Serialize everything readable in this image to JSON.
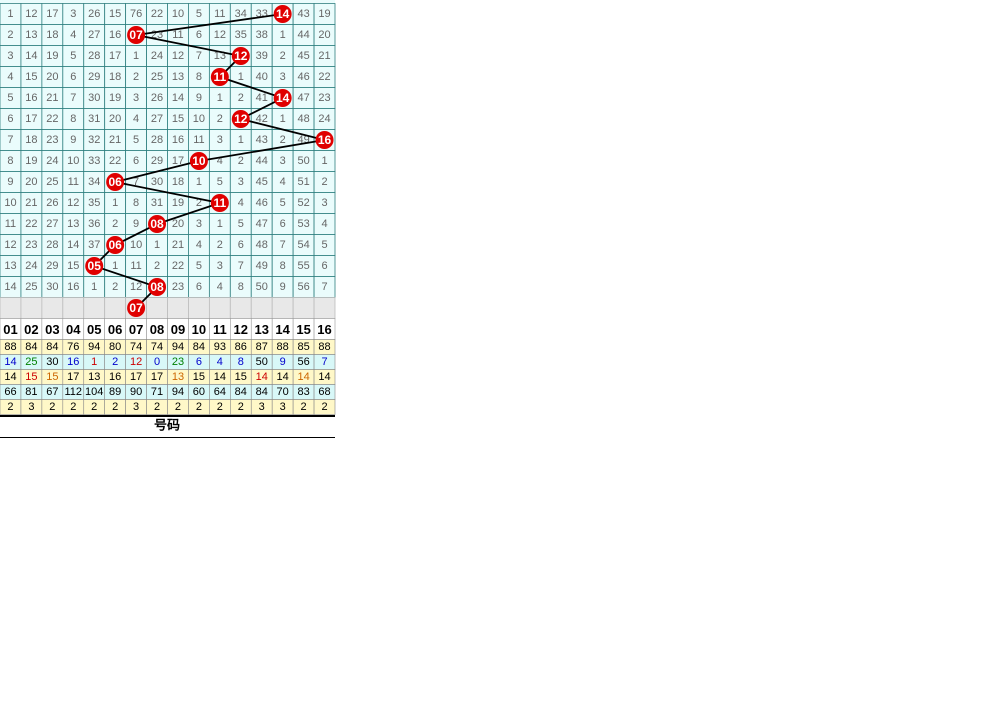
{
  "grid": {
    "rows": [
      {
        "cells": [
          "1",
          "12",
          "17",
          "3",
          "26",
          "15",
          "76",
          "22",
          "10",
          "5",
          "11",
          "34",
          "33",
          "14",
          "43",
          "19"
        ],
        "ball": 13
      },
      {
        "cells": [
          "2",
          "13",
          "18",
          "4",
          "27",
          "16",
          "07",
          "23",
          "11",
          "6",
          "12",
          "35",
          "38",
          "1",
          "44",
          "20"
        ],
        "ball": 6
      },
      {
        "cells": [
          "3",
          "14",
          "19",
          "5",
          "28",
          "17",
          "1",
          "24",
          "12",
          "7",
          "13",
          "12",
          "39",
          "2",
          "45",
          "21"
        ],
        "ball": 11
      },
      {
        "cells": [
          "4",
          "15",
          "20",
          "6",
          "29",
          "18",
          "2",
          "25",
          "13",
          "8",
          "11",
          "1",
          "40",
          "3",
          "46",
          "22"
        ],
        "ball": 10
      },
      {
        "cells": [
          "5",
          "16",
          "21",
          "7",
          "30",
          "19",
          "3",
          "26",
          "14",
          "9",
          "1",
          "2",
          "41",
          "14",
          "47",
          "23"
        ],
        "ball": 13
      },
      {
        "cells": [
          "6",
          "17",
          "22",
          "8",
          "31",
          "20",
          "4",
          "27",
          "15",
          "10",
          "2",
          "12",
          "42",
          "1",
          "48",
          "24"
        ],
        "ball": 11
      },
      {
        "cells": [
          "7",
          "18",
          "23",
          "9",
          "32",
          "21",
          "5",
          "28",
          "16",
          "11",
          "3",
          "1",
          "43",
          "2",
          "49",
          "16"
        ],
        "ball": 15
      },
      {
        "cells": [
          "8",
          "19",
          "24",
          "10",
          "33",
          "22",
          "6",
          "29",
          "17",
          "10",
          "4",
          "2",
          "44",
          "3",
          "50",
          "1"
        ],
        "ball": 9
      },
      {
        "cells": [
          "9",
          "20",
          "25",
          "11",
          "34",
          "06",
          "7",
          "30",
          "18",
          "1",
          "5",
          "3",
          "45",
          "4",
          "51",
          "2"
        ],
        "ball": 5
      },
      {
        "cells": [
          "10",
          "21",
          "26",
          "12",
          "35",
          "1",
          "8",
          "31",
          "19",
          "2",
          "11",
          "4",
          "46",
          "5",
          "52",
          "3"
        ],
        "ball": 10
      },
      {
        "cells": [
          "11",
          "22",
          "27",
          "13",
          "36",
          "2",
          "9",
          "08",
          "20",
          "3",
          "1",
          "5",
          "47",
          "6",
          "53",
          "4"
        ],
        "ball": 7
      },
      {
        "cells": [
          "12",
          "23",
          "28",
          "14",
          "37",
          "06",
          "10",
          "1",
          "21",
          "4",
          "2",
          "6",
          "48",
          "7",
          "54",
          "5"
        ],
        "ball": 5
      },
      {
        "cells": [
          "13",
          "24",
          "29",
          "15",
          "05",
          "1",
          "11",
          "2",
          "22",
          "5",
          "3",
          "7",
          "49",
          "8",
          "55",
          "6"
        ],
        "ball": 4
      },
      {
        "cells": [
          "14",
          "25",
          "30",
          "16",
          "1",
          "2",
          "12",
          "08",
          "23",
          "6",
          "4",
          "8",
          "50",
          "9",
          "56",
          "7"
        ],
        "ball": 7
      },
      {
        "cells": [
          null,
          null,
          null,
          null,
          null,
          null,
          "07",
          null,
          null,
          null,
          null,
          null,
          null,
          null,
          null,
          null
        ],
        "ball": 6
      }
    ]
  },
  "header": [
    "01",
    "02",
    "03",
    "04",
    "05",
    "06",
    "07",
    "08",
    "09",
    "10",
    "11",
    "12",
    "13",
    "14",
    "15",
    "16"
  ],
  "stats": [
    {
      "values": [
        "88",
        "84",
        "84",
        "76",
        "94",
        "80",
        "74",
        "74",
        "94",
        "84",
        "93",
        "86",
        "87",
        "88",
        "85",
        "88"
      ],
      "background": "#fff8c8",
      "colors": [
        "#000",
        "#000",
        "#000",
        "#000",
        "#000",
        "#000",
        "#000",
        "#000",
        "#000",
        "#000",
        "#000",
        "#000",
        "#000",
        "#000",
        "#000",
        "#000"
      ]
    },
    {
      "values": [
        "14",
        "25",
        "30",
        "16",
        "1",
        "2",
        "12",
        "0",
        "23",
        "6",
        "4",
        "8",
        "50",
        "9",
        "56",
        "7"
      ],
      "background": "#d8f8f8",
      "colors": [
        "#0000cc",
        "#008000",
        "#000",
        "#0000cc",
        "#cc0000",
        "#0000cc",
        "#cc0000",
        "#0000cc",
        "#008000",
        "#0000cc",
        "#0000cc",
        "#0000cc",
        "#000",
        "#0000cc",
        "#000",
        "#0000cc"
      ]
    },
    {
      "values": [
        "14",
        "15",
        "15",
        "17",
        "13",
        "16",
        "17",
        "17",
        "13",
        "15",
        "14",
        "15",
        "14",
        "14",
        "14",
        "14"
      ],
      "background": "#fff8c8",
      "colors": [
        "#000",
        "#cc0000",
        "#cc6600",
        "#000",
        "#000",
        "#000",
        "#000",
        "#000",
        "#cc6600",
        "#000",
        "#000",
        "#000",
        "#cc0000",
        "#000",
        "#cc6600",
        "#000"
      ]
    },
    {
      "values": [
        "66",
        "81",
        "67",
        "112",
        "104",
        "89",
        "90",
        "71",
        "94",
        "60",
        "64",
        "84",
        "84",
        "70",
        "83",
        "68"
      ],
      "background": "#d8f8f8",
      "colors": [
        "#000",
        "#000",
        "#000",
        "#000",
        "#000",
        "#000",
        "#000",
        "#000",
        "#000",
        "#000",
        "#000",
        "#000",
        "#000",
        "#000",
        "#000",
        "#000"
      ]
    },
    {
      "values": [
        "2",
        "3",
        "2",
        "2",
        "2",
        "2",
        "3",
        "2",
        "2",
        "2",
        "2",
        "2",
        "3",
        "3",
        "2",
        "2"
      ],
      "background": "#fff8c8",
      "colors": [
        "#000",
        "#000",
        "#000",
        "#000",
        "#000",
        "#000",
        "#000",
        "#000",
        "#000",
        "#000",
        "#000",
        "#000",
        "#000",
        "#000",
        "#000",
        "#000"
      ]
    }
  ],
  "footer": "号码"
}
